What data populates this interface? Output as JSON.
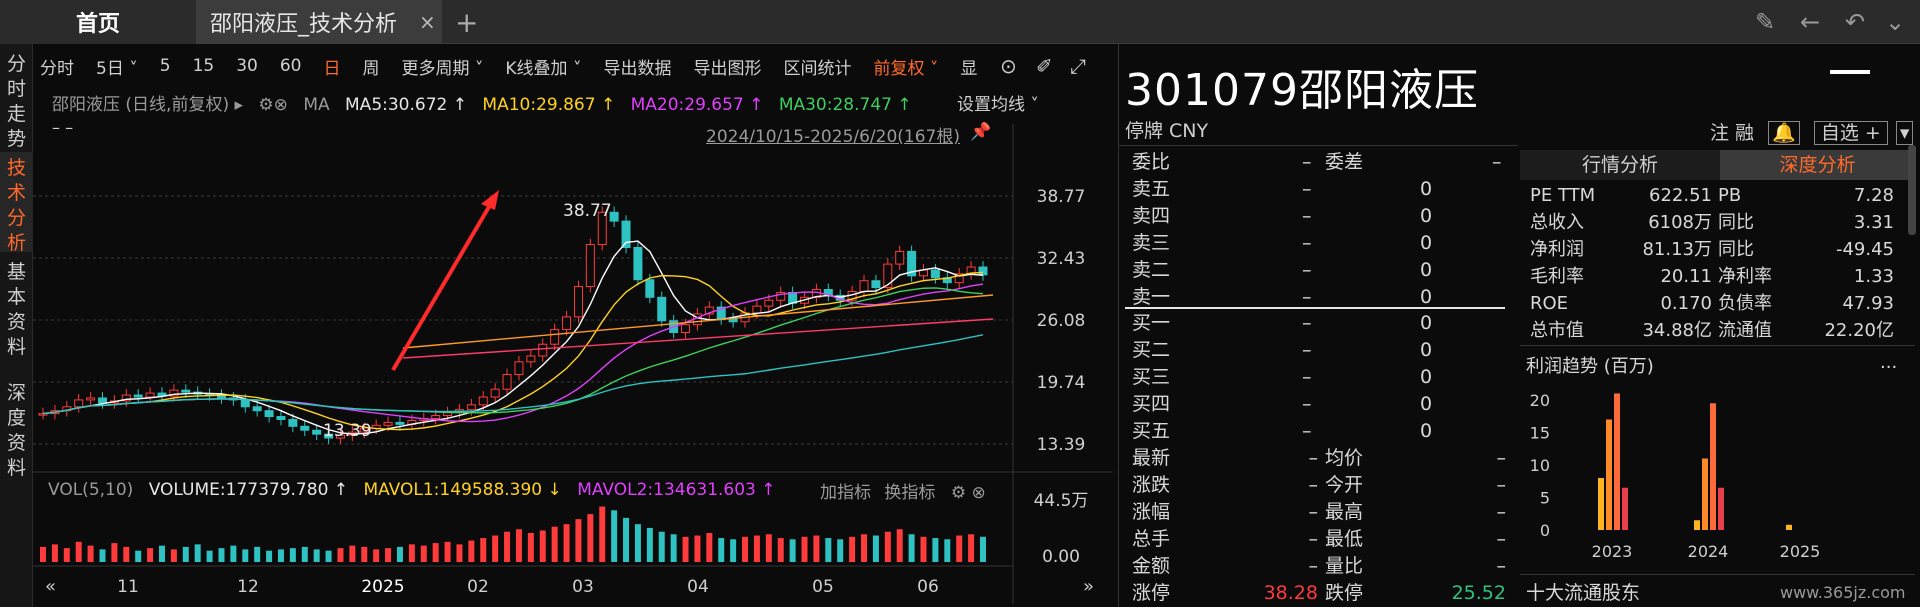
{
  "tabs": {
    "home": "首页",
    "active": "邵阳液压_技术分析",
    "close": "×",
    "add": "+"
  },
  "left_nav": [
    {
      "label": "分时走势",
      "active": false
    },
    {
      "label": "技术分析",
      "active": true
    },
    {
      "label": "基本资料",
      "active": false
    },
    {
      "label": "深度资料",
      "active": false
    }
  ],
  "toolbar": {
    "items": [
      "分时",
      "5日 ˅",
      "5",
      "15",
      "30",
      "60",
      "日",
      "周",
      "更多周期 ˅",
      "K线叠加 ˅",
      "导出数据",
      "导出图形",
      "区间统计",
      "前复权 ˅",
      "显"
    ],
    "active": [
      "日",
      "前复权 ˅"
    ]
  },
  "indicator": {
    "name": "邵阳液压 (日线,前复权) ▸",
    "ma_label": "MA",
    "ma5": "MA5:30.672 ↑",
    "ma10": "MA10:29.867 ↑",
    "ma20": "MA20:29.657 ↑",
    "ma30": "MA30:28.747 ↑",
    "set_ma": "设置均线 ˅",
    "dash": "– –",
    "range": "2024/10/15-2025/6/20(167根)"
  },
  "chart_data": {
    "type": "candlestick",
    "title": "",
    "x_ticks": [
      "11",
      "12",
      "2025",
      "02",
      "03",
      "04",
      "05",
      "06"
    ],
    "y_ticks": [
      38.77,
      32.43,
      26.08,
      19.74,
      13.39
    ],
    "ylim": [
      13.39,
      38.77
    ],
    "annotations": [
      {
        "label": "38.77",
        "kind": "max"
      },
      {
        "label": "13.39",
        "kind": "min"
      }
    ],
    "close_series": [
      16.5,
      16.8,
      17.2,
      17.9,
      18.1,
      17.6,
      17.8,
      18.4,
      18.2,
      18.6,
      18.3,
      18.9,
      18.7,
      18.5,
      18.4,
      18.1,
      17.9,
      17.2,
      16.8,
      16.2,
      15.9,
      15.2,
      14.8,
      14.4,
      14.0,
      14.3,
      14.6,
      15.0,
      15.3,
      15.6,
      15.4,
      15.8,
      16.0,
      16.3,
      16.6,
      16.9,
      17.4,
      18.2,
      19.0,
      20.5,
      21.8,
      22.4,
      23.6,
      25.1,
      26.4,
      29.5,
      33.8,
      37.1,
      36.2,
      33.5,
      30.2,
      28.4,
      26.0,
      24.8,
      25.6,
      26.7,
      27.4,
      26.2,
      25.9,
      26.8,
      27.5,
      28.1,
      28.9,
      27.8,
      28.4,
      29.2,
      28.6,
      28.1,
      29.0,
      30.1,
      29.4,
      31.8,
      33.1,
      30.6,
      31.2,
      30.4,
      29.9,
      30.8,
      31.5,
      30.7
    ],
    "volume": {
      "label": "VOL(5,10)",
      "volume": "VOLUME:177379.780 ↑",
      "mavol1": "MAVOL1:149588.390 ↓",
      "mavol2": "MAVOL2:134631.603 ↑",
      "y_ticks": [
        "44.5万",
        "0.00"
      ]
    },
    "volume_series": [
      12,
      14,
      11,
      16,
      13,
      10,
      15,
      12,
      9,
      11,
      13,
      10,
      12,
      14,
      9,
      11,
      13,
      10,
      12,
      9,
      10,
      11,
      12,
      10,
      9,
      11,
      13,
      12,
      10,
      11,
      12,
      14,
      13,
      15,
      16,
      14,
      17,
      19,
      21,
      24,
      26,
      23,
      25,
      28,
      30,
      34,
      38,
      44,
      41,
      35,
      30,
      27,
      24,
      22,
      20,
      21,
      23,
      19,
      18,
      20,
      21,
      22,
      19,
      18,
      20,
      21,
      19,
      18,
      20,
      22,
      21,
      24,
      26,
      22,
      20,
      19,
      18,
      21,
      22,
      20
    ]
  },
  "vol_actions": {
    "add": "加指标",
    "swap": "换指标"
  },
  "stock": {
    "code": "301079",
    "name": "邵阳液压",
    "status": "停牌 CNY",
    "actions": "注  融",
    "select": "自选 +"
  },
  "order_book": {
    "header": {
      "weibi": "委比",
      "weibi_v": "–",
      "weicha": "委差",
      "weicha_v": "–"
    },
    "sells": [
      {
        "label": "卖五",
        "price": "–",
        "vol": "0"
      },
      {
        "label": "卖四",
        "price": "–",
        "vol": "0"
      },
      {
        "label": "卖三",
        "price": "–",
        "vol": "0"
      },
      {
        "label": "卖二",
        "price": "–",
        "vol": "0"
      },
      {
        "label": "卖一",
        "price": "–",
        "vol": "0"
      }
    ],
    "buys": [
      {
        "label": "买一",
        "price": "–",
        "vol": "0"
      },
      {
        "label": "买二",
        "price": "–",
        "vol": "0"
      },
      {
        "label": "买三",
        "price": "–",
        "vol": "0"
      },
      {
        "label": "买四",
        "price": "–",
        "vol": "0"
      },
      {
        "label": "买五",
        "price": "–",
        "vol": "0"
      }
    ]
  },
  "stats": [
    {
      "l1": "最新",
      "v1": "–",
      "l2": "均价",
      "v2": "–"
    },
    {
      "l1": "涨跌",
      "v1": "–",
      "l2": "今开",
      "v2": "–"
    },
    {
      "l1": "涨幅",
      "v1": "–",
      "l2": "最高",
      "v2": "–"
    },
    {
      "l1": "总手",
      "v1": "–",
      "l2": "最低",
      "v2": "–"
    },
    {
      "l1": "金额",
      "v1": "–",
      "l2": "量比",
      "v2": "–"
    },
    {
      "l1": "涨停",
      "v1": "38.28",
      "l2": "跌停",
      "v2": "25.52"
    }
  ],
  "rp_tabs": {
    "market": "行情分析",
    "deep": "深度分析"
  },
  "fundamentals": [
    {
      "l1": "PE TTM",
      "v1": "622.51",
      "l2": "PB",
      "v2": "7.28"
    },
    {
      "l1": "总收入",
      "v1": "6108万",
      "l2": "同比",
      "v2": "3.31"
    },
    {
      "l1": "净利润",
      "v1": "81.13万",
      "l2": "同比",
      "v2": "-49.45"
    },
    {
      "l1": "毛利率",
      "v1": "20.11",
      "l2": "净利率",
      "v2": "1.33"
    },
    {
      "l1": "ROE",
      "v1": "0.170",
      "l2": "负债率",
      "v2": "47.93"
    },
    {
      "l1": "总市值",
      "v1": "34.88亿",
      "l2": "流通值",
      "v2": "22.20亿"
    }
  ],
  "profit_chart": {
    "title": "利润趋势 (百万)",
    "more": "...",
    "y_ticks": [
      20,
      15,
      10,
      5,
      0
    ],
    "years": [
      {
        "year": "2023",
        "values": [
          8,
          17,
          21,
          6.5
        ]
      },
      {
        "year": "2024",
        "values": [
          1.5,
          11,
          19.5,
          6.5
        ]
      },
      {
        "year": "2025",
        "values": [
          0.8
        ]
      }
    ],
    "colors": [
      "#ffb320",
      "#ff8a2a",
      "#ff6a3a",
      "#e8404a"
    ]
  },
  "holders_title": "十大流通股东",
  "watermark": "www.365jz.com"
}
